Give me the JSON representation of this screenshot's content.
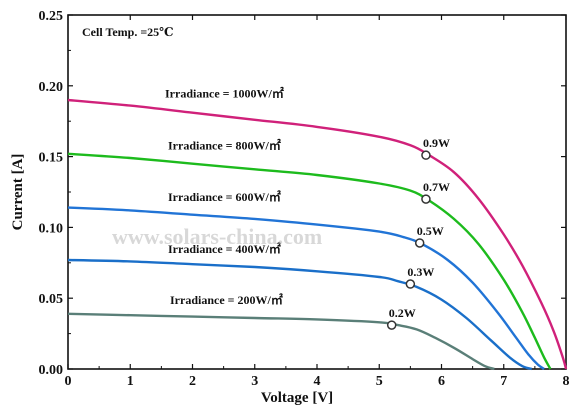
{
  "chart_data": {
    "type": "line",
    "title": "",
    "xlabel": "Voltage [V]",
    "ylabel": "Current [A]",
    "xlim": [
      0,
      8
    ],
    "ylim": [
      0,
      0.25
    ],
    "x_ticks": [
      "0",
      "1",
      "2",
      "3",
      "4",
      "5",
      "6",
      "7",
      "8"
    ],
    "y_ticks": [
      "0.00",
      "0.05",
      "0.10",
      "0.15",
      "0.20",
      "0.25"
    ],
    "grid": false,
    "annotations": {
      "cell_temp": "Cell Temp. =25℃",
      "watermark": "www.solars-china.com"
    },
    "series": [
      {
        "name": "Irradiance = 1000W/㎡",
        "color": "#d0217a",
        "x": [
          0,
          1,
          2,
          3,
          4,
          5,
          5.5,
          5.8,
          6.2,
          6.6,
          7.0,
          7.3,
          7.6,
          7.8,
          7.95,
          8.0
        ],
        "y": [
          0.19,
          0.186,
          0.181,
          0.176,
          0.171,
          0.164,
          0.158,
          0.151,
          0.139,
          0.12,
          0.095,
          0.073,
          0.047,
          0.027,
          0.008,
          0.0
        ],
        "marker": {
          "x": 5.75,
          "y": 0.151,
          "label": "0.9W"
        }
      },
      {
        "name": "Irradiance = 800W/㎡",
        "color": "#1dbb1d",
        "x": [
          0,
          1,
          2,
          3,
          4,
          5,
          5.5,
          5.8,
          6.2,
          6.6,
          7.0,
          7.3,
          7.5,
          7.65,
          7.75
        ],
        "y": [
          0.152,
          0.149,
          0.145,
          0.141,
          0.137,
          0.131,
          0.126,
          0.119,
          0.106,
          0.088,
          0.063,
          0.04,
          0.022,
          0.008,
          0.0
        ],
        "marker": {
          "x": 5.75,
          "y": 0.12,
          "label": "0.7W"
        }
      },
      {
        "name": "Irradiance = 600W/㎡",
        "color": "#2174d6",
        "x": [
          0,
          1,
          2,
          3,
          4,
          5,
          5.4,
          5.7,
          6.1,
          6.5,
          6.9,
          7.2,
          7.4,
          7.55,
          7.65
        ],
        "y": [
          0.114,
          0.112,
          0.109,
          0.106,
          0.102,
          0.097,
          0.093,
          0.088,
          0.077,
          0.061,
          0.04,
          0.022,
          0.01,
          0.003,
          0.0
        ],
        "marker": {
          "x": 5.65,
          "y": 0.089,
          "label": "0.5W"
        }
      },
      {
        "name": "Irradiance = 400W/㎡",
        "color": "#1a6fc9",
        "x": [
          0,
          1,
          2,
          3,
          4,
          5,
          5.3,
          5.6,
          6.0,
          6.4,
          6.8,
          7.1,
          7.3,
          7.45
        ],
        "y": [
          0.077,
          0.076,
          0.074,
          0.072,
          0.069,
          0.065,
          0.062,
          0.058,
          0.049,
          0.036,
          0.02,
          0.008,
          0.002,
          0.0
        ],
        "marker": {
          "x": 5.5,
          "y": 0.06,
          "label": "0.3W"
        }
      },
      {
        "name": "Irradiance = 200W/㎡",
        "color": "#5a7f78",
        "x": [
          0,
          1,
          2,
          3,
          4,
          5,
          5.3,
          5.6,
          5.9,
          6.2,
          6.5,
          6.7,
          6.85
        ],
        "y": [
          0.039,
          0.038,
          0.037,
          0.036,
          0.035,
          0.033,
          0.031,
          0.028,
          0.022,
          0.015,
          0.007,
          0.002,
          0.0
        ],
        "marker": {
          "x": 5.2,
          "y": 0.031,
          "label": "0.2W"
        }
      }
    ]
  }
}
